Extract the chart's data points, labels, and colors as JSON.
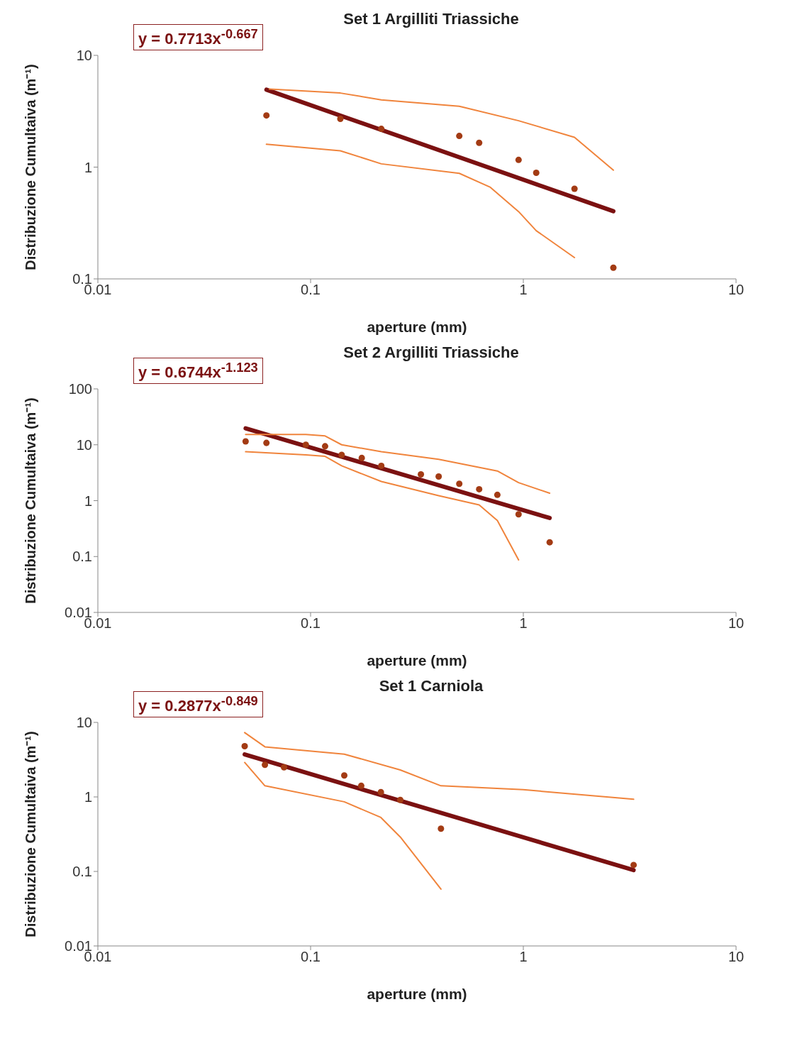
{
  "chart_data": [
    {
      "type": "scatter",
      "title": "Set 1 Argilliti Triassiche",
      "xlabel": "aperture (mm)",
      "ylabel": "Distribuzione Cumultaiva (m⁻¹)",
      "annotations": [
        "y = 0.7713x$^{-0.667}$"
      ],
      "log": "xy",
      "grid": false,
      "xlim": [
        0.01,
        10
      ],
      "xticks": [
        0.01,
        0.1,
        1,
        10
      ],
      "ylim": [
        0.1,
        10
      ],
      "yticks": [
        0.1,
        1,
        10
      ],
      "series": [
        {
          "marker": "circle",
          "color": "#a33b14",
          "x": [
            0.062,
            0.138,
            0.215,
            0.5,
            0.62,
            0.95,
            1.15,
            1.74,
            2.65
          ],
          "values": [
            2.9,
            2.7,
            2.2,
            1.9,
            1.65,
            1.16,
            0.89,
            0.64,
            0.126
          ]
        },
        {
          "type": "line",
          "marker": "none",
          "color": "#7b1111",
          "x": [
            0.062,
            2.65
          ],
          "values": [
            4.93,
            0.403
          ]
        },
        {
          "type": "line",
          "marker": "none",
          "color": "#f0843c",
          "x": [
            0.064,
            0.138,
            0.215,
            0.5,
            0.95,
            1.74,
            2.65
          ],
          "values": [
            5.0,
            4.6,
            4.0,
            3.5,
            2.6,
            1.85,
            0.94
          ]
        },
        {
          "type": "line",
          "marker": "none",
          "color": "#f0843c",
          "x": [
            0.062,
            0.138,
            0.215,
            0.5,
            0.7,
            0.95,
            1.15,
            1.74
          ],
          "values": [
            1.6,
            1.4,
            1.07,
            0.88,
            0.66,
            0.4,
            0.27,
            0.155
          ]
        }
      ]
    },
    {
      "type": "scatter",
      "title": "Set 2 Argilliti Triassiche",
      "xlabel": "aperture (mm)",
      "ylabel": "Distribuzione Cumultaiva (m⁻¹)",
      "annotations": [
        "y = 0.6744x$^{-1.123}$"
      ],
      "log": "xy",
      "grid": false,
      "xlim": [
        0.01,
        10
      ],
      "xticks": [
        0.01,
        0.1,
        1,
        10
      ],
      "ylim": [
        0.01,
        100
      ],
      "yticks": [
        0.01,
        0.1,
        1,
        10,
        100
      ],
      "series": [
        {
          "marker": "circle",
          "color": "#a33b14",
          "x": [
            0.0495,
            0.062,
            0.095,
            0.117,
            0.14,
            0.174,
            0.215,
            0.33,
            0.4,
            0.5,
            0.62,
            0.755,
            0.95,
            1.33
          ],
          "values": [
            11.5,
            10.8,
            10,
            9.4,
            6.6,
            5.8,
            4.2,
            2.95,
            2.7,
            2.0,
            1.6,
            1.27,
            0.57,
            0.18
          ]
        },
        {
          "type": "line",
          "marker": "none",
          "color": "#7b1111",
          "x": [
            0.0495,
            1.33
          ],
          "values": [
            19.7,
            0.49
          ]
        },
        {
          "type": "line",
          "marker": "none",
          "color": "#f0843c",
          "x": [
            0.0495,
            0.095,
            0.117,
            0.14,
            0.215,
            0.4,
            0.755,
            0.95,
            1.33
          ],
          "values": [
            15.3,
            15.3,
            14.4,
            10,
            7.5,
            5.5,
            3.4,
            2.1,
            1.36
          ]
        },
        {
          "type": "line",
          "marker": "none",
          "color": "#f0843c",
          "x": [
            0.0495,
            0.095,
            0.117,
            0.14,
            0.215,
            0.4,
            0.62,
            0.755,
            0.95
          ],
          "values": [
            7.5,
            6.6,
            6.2,
            4.2,
            2.2,
            1.23,
            0.84,
            0.44,
            0.087
          ]
        }
      ]
    },
    {
      "type": "scatter",
      "title": "Set 1 Carniola",
      "xlabel": "aperture (mm)",
      "ylabel": "Distribuzione Cumultaiva (m⁻¹)",
      "annotations": [
        "y = 0.2877x$^{-0.849}$"
      ],
      "log": "xy",
      "grid": false,
      "xlim": [
        0.01,
        10
      ],
      "xticks": [
        0.01,
        0.1,
        1,
        10
      ],
      "ylim": [
        0.01,
        10
      ],
      "yticks": [
        0.01,
        0.1,
        1,
        10
      ],
      "series": [
        {
          "marker": "circle",
          "color": "#a33b14",
          "x": [
            0.049,
            0.061,
            0.075,
            0.144,
            0.173,
            0.214,
            0.264,
            0.41,
            3.3
          ],
          "values": [
            4.8,
            2.7,
            2.5,
            1.94,
            1.41,
            1.16,
            0.91,
            0.375,
            0.122
          ]
        },
        {
          "type": "line",
          "marker": "none",
          "color": "#7b1111",
          "x": [
            0.049,
            3.3
          ],
          "values": [
            3.72,
            0.104
          ]
        },
        {
          "type": "line",
          "marker": "none",
          "color": "#f0843c",
          "x": [
            0.049,
            0.061,
            0.144,
            0.264,
            0.41,
            1.0,
            3.3
          ],
          "values": [
            7.3,
            4.7,
            3.75,
            2.3,
            1.41,
            1.25,
            0.93
          ]
        },
        {
          "type": "line",
          "marker": "none",
          "color": "#f0843c",
          "x": [
            0.049,
            0.061,
            0.144,
            0.214,
            0.264,
            0.41
          ],
          "values": [
            2.9,
            1.41,
            0.86,
            0.53,
            0.29,
            0.058
          ]
        }
      ]
    }
  ]
}
